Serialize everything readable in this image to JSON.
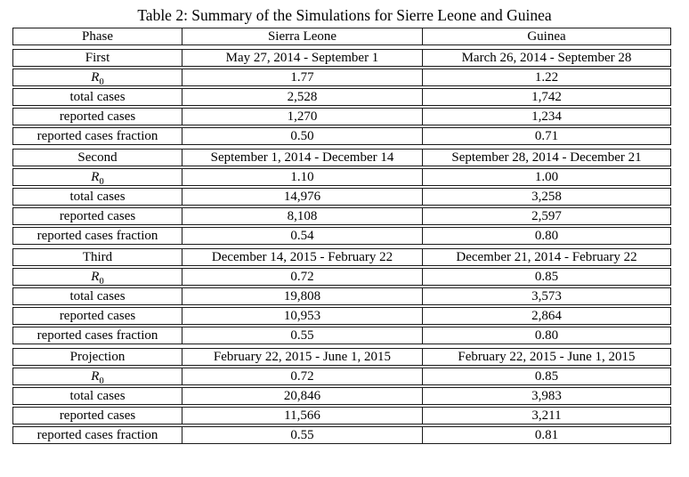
{
  "page": {
    "title": "Table 2: Summary of the Simulations for Sierre Leone and Guinea"
  },
  "table": {
    "columns": [
      "Phase",
      "Sierra Leone",
      "Guinea"
    ],
    "r0": {
      "base": "R",
      "sub": "0"
    },
    "row_labels": {
      "total": "total cases",
      "reported": "reported cases",
      "fraction": "reported cases fraction"
    },
    "blocks": [
      {
        "phase": "First",
        "periods": {
          "sl": "May 27, 2014 - September 1",
          "gn": "March 26, 2014 - September 28"
        },
        "r0": {
          "sl": "1.77",
          "gn": "1.22"
        },
        "total": {
          "sl": "2,528",
          "gn": "1,742"
        },
        "reported": {
          "sl": "1,270",
          "gn": "1,234"
        },
        "fraction": {
          "sl": "0.50",
          "gn": "0.71"
        }
      },
      {
        "phase": "Second",
        "periods": {
          "sl": "September 1, 2014 - December 14",
          "gn": "September 28, 2014 - December 21"
        },
        "r0": {
          "sl": "1.10",
          "gn": "1.00"
        },
        "total": {
          "sl": "14,976",
          "gn": "3,258"
        },
        "reported": {
          "sl": "8,108",
          "gn": "2,597"
        },
        "fraction": {
          "sl": "0.54",
          "gn": "0.80"
        }
      },
      {
        "phase": "Third",
        "periods": {
          "sl": "December 14, 2015 - February 22",
          "gn": "December 21, 2014 - February 22"
        },
        "r0": {
          "sl": "0.72",
          "gn": "0.85"
        },
        "total": {
          "sl": "19,808",
          "gn": "3,573"
        },
        "reported": {
          "sl": "10,953",
          "gn": "2,864"
        },
        "fraction": {
          "sl": "0.55",
          "gn": "0.80"
        }
      },
      {
        "phase": "Projection",
        "periods": {
          "sl": "February 22, 2015 - June 1, 2015",
          "gn": "February 22, 2015 - June 1, 2015"
        },
        "r0": {
          "sl": "0.72",
          "gn": "0.85"
        },
        "total": {
          "sl": "20,846",
          "gn": "3,983"
        },
        "reported": {
          "sl": "11,566",
          "gn": "3,211"
        },
        "fraction": {
          "sl": "0.55",
          "gn": "0.81"
        }
      }
    ]
  }
}
